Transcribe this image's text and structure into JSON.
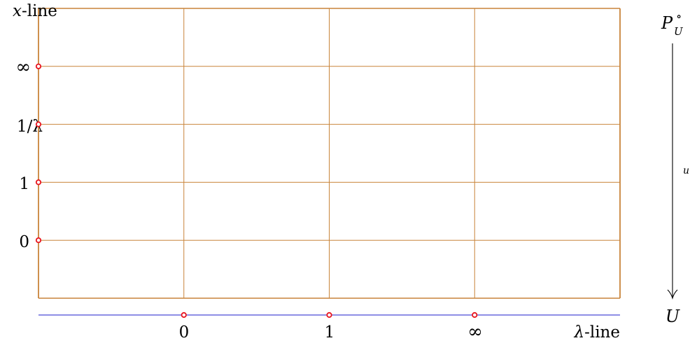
{
  "colors": {
    "grid": "#c8843a",
    "parameter_line": "#4b4bd6",
    "marked_point": "#e8141e",
    "text": "#000000"
  },
  "grid": {
    "columns": 4,
    "rows": 5
  },
  "x_line": {
    "label_var": "x",
    "label_suffix": "-line",
    "points": [
      "∞",
      "1/λ",
      "1",
      "0"
    ]
  },
  "lambda_line": {
    "label_var": "λ",
    "label_suffix": "-line",
    "points": [
      "0",
      "1",
      "∞"
    ]
  },
  "map": {
    "source_base": "P",
    "source_sup": "∘",
    "source_sub": "U",
    "target": "U",
    "arrow_label": "u"
  }
}
